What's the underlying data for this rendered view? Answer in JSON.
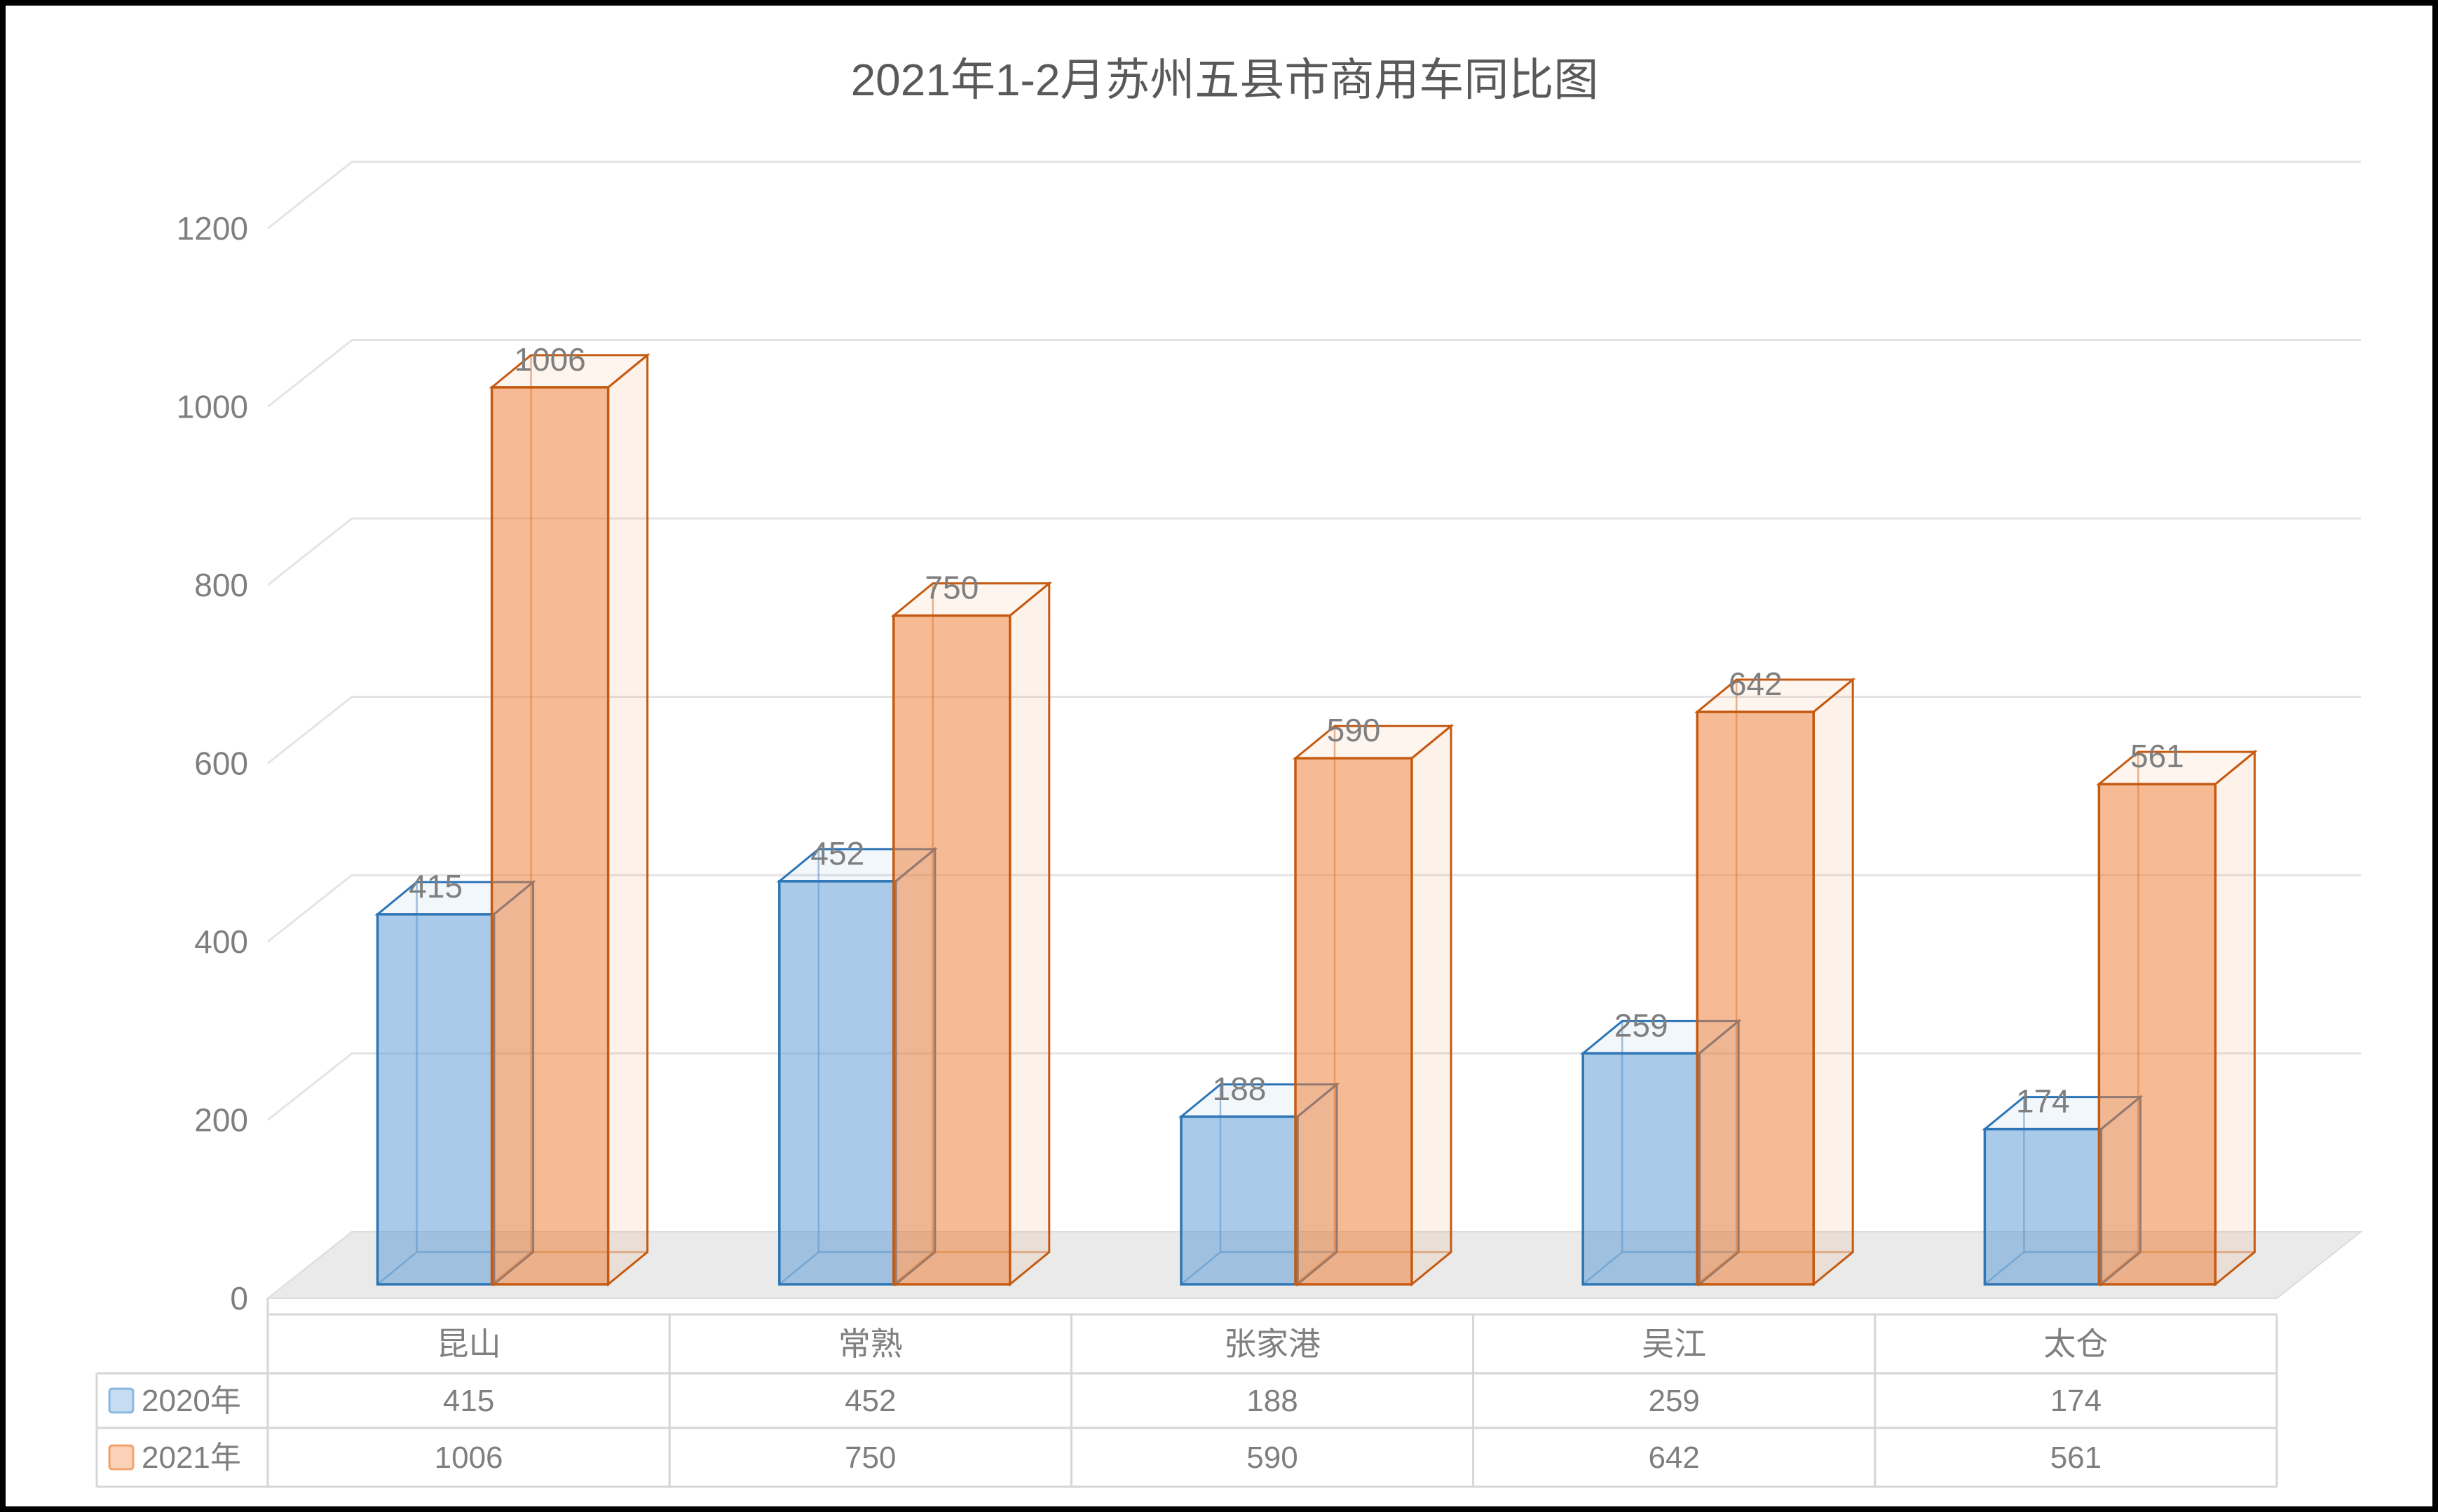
{
  "title": "2021年1-2月苏州五县市商用车同比图",
  "chart_data": {
    "type": "bar",
    "projection": "3d",
    "title": "2021年1-2月苏州五县市商用车同比图",
    "categories": [
      "昆山",
      "常熟",
      "张家港",
      "吴江",
      "太仓"
    ],
    "series": [
      {
        "name": "2020年",
        "color": "#5B9BD5",
        "border_color": "#2E75B6",
        "values": [
          415,
          452,
          188,
          259,
          174
        ]
      },
      {
        "name": "2021年",
        "color": "#ED7D31",
        "border_color": "#C55A11",
        "values": [
          1006,
          750,
          590,
          642,
          561
        ]
      }
    ],
    "y_axis": {
      "min": 0,
      "max": 1200,
      "tick_step": 200,
      "tick_labels": [
        "0",
        "200",
        "400",
        "600",
        "800",
        "1000",
        "1200"
      ]
    },
    "xlabel": "",
    "ylabel": "",
    "grid": true,
    "show_data_labels": true,
    "show_data_table": true,
    "legend_position": "data-table-left",
    "colors": {
      "title_text": "#595959",
      "axis_text": "#7F7F7F",
      "data_label_text": "#7F7F7F",
      "table_text": "#7F7F7F",
      "gridline": "#E4E4E4",
      "floor_fill": "#EAEAEA",
      "floor_edge": "#DCDCDC",
      "table_border": "#D6D6D6",
      "frame_border": "#000000",
      "background": "#FFFFFF"
    }
  }
}
